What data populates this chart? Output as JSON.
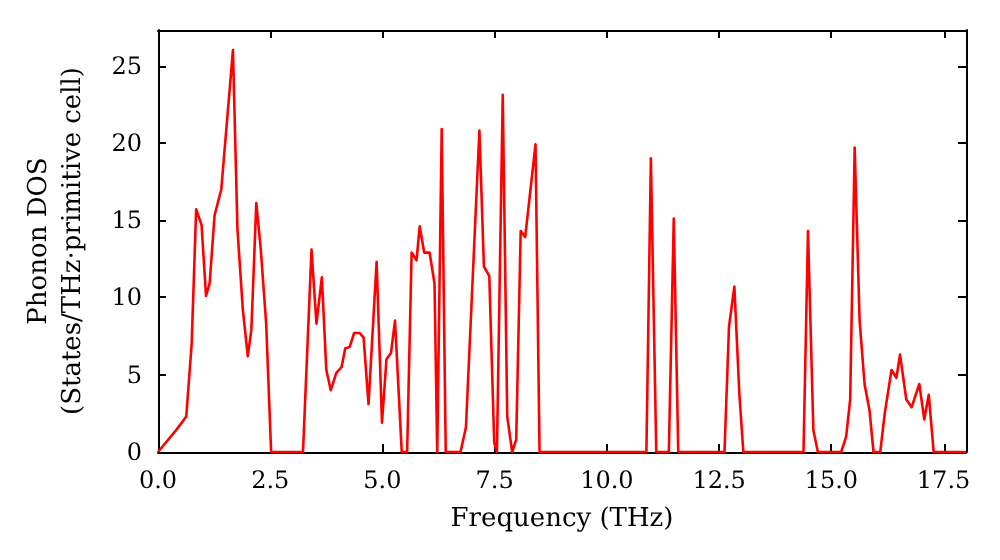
{
  "chart_data": {
    "type": "line",
    "xlabel": "Frequency (THz)",
    "ylabel": "Phonon DOS\n(States/THz·primitive cell)",
    "xlim": [
      0,
      18
    ],
    "ylim": [
      0,
      27.3
    ],
    "xticks": [
      {
        "value": 0,
        "label": "0.0"
      },
      {
        "value": 2.5,
        "label": "2.5"
      },
      {
        "value": 5,
        "label": "5.0"
      },
      {
        "value": 7.5,
        "label": "7.5"
      },
      {
        "value": 10,
        "label": "10.0"
      },
      {
        "value": 12.5,
        "label": "12.5"
      },
      {
        "value": 15,
        "label": "15.0"
      },
      {
        "value": 17.5,
        "label": "17.5"
      }
    ],
    "yticks": [
      0,
      5,
      10,
      15,
      20,
      25
    ],
    "grid": false,
    "marker": "none",
    "line_style": "solid",
    "series": [
      {
        "color": "#ff0000",
        "x": [
          0,
          0.4,
          0.63,
          0.75,
          0.85,
          0.97,
          1.07,
          1.15,
          1.26,
          1.41,
          1.67,
          1.77,
          1.89,
          2.0,
          2.08,
          2.19,
          2.29,
          2.41,
          2.52,
          3.23,
          3.42,
          3.53,
          3.65,
          3.75,
          3.85,
          3.97,
          4.09,
          4.17,
          4.27,
          4.37,
          4.49,
          4.58,
          4.69,
          4.87,
          4.99,
          5.09,
          5.19,
          5.28,
          5.43,
          5.55,
          5.65,
          5.76,
          5.83,
          5.93,
          6.05,
          6.16,
          6.22,
          6.32,
          6.41,
          6.74,
          6.86,
          7.16,
          7.26,
          7.38,
          7.49,
          7.55,
          7.68,
          7.78,
          7.89,
          7.98,
          8.08,
          8.18,
          8.41,
          8.5,
          10.88,
          10.98,
          11.1,
          11.38,
          11.49,
          11.59,
          12.62,
          12.72,
          12.84,
          12.95,
          13.04,
          14.38,
          14.48,
          14.6,
          14.7,
          15.22,
          15.33,
          15.42,
          15.52,
          15.63,
          15.74,
          15.85,
          15.94,
          16.09,
          16.19,
          16.34,
          16.45,
          16.53,
          16.67,
          16.79,
          16.96,
          17.07,
          17.17,
          17.28,
          18.0
        ],
        "values": [
          0,
          1.4,
          2.3,
          7,
          15.7,
          14.7,
          10.1,
          10.9,
          15.3,
          17,
          26,
          14.4,
          9.2,
          6.2,
          7.9,
          16.1,
          13.1,
          8.3,
          0,
          0,
          13.1,
          8.3,
          11.3,
          5.3,
          4.0,
          5.1,
          5.5,
          6.7,
          6.8,
          7.7,
          7.7,
          7.4,
          3.1,
          12.3,
          1.9,
          6.0,
          6.4,
          8.5,
          0,
          0,
          12.9,
          12.4,
          14.6,
          12.9,
          12.9,
          10.9,
          0,
          20.9,
          0,
          0,
          1.6,
          20.8,
          12.0,
          11.4,
          0.6,
          0,
          23.1,
          2.3,
          0,
          0.8,
          14.3,
          13.9,
          19.9,
          0,
          0,
          19.0,
          0,
          0,
          15.1,
          0,
          0,
          8.1,
          10.7,
          3.8,
          0,
          0,
          14.3,
          1.4,
          0,
          0,
          1.0,
          3.4,
          19.7,
          8.5,
          4.4,
          2.7,
          0,
          0,
          2.5,
          5.3,
          4.8,
          6.3,
          3.4,
          2.9,
          4.4,
          2.1,
          3.7,
          0,
          0
        ]
      }
    ]
  }
}
